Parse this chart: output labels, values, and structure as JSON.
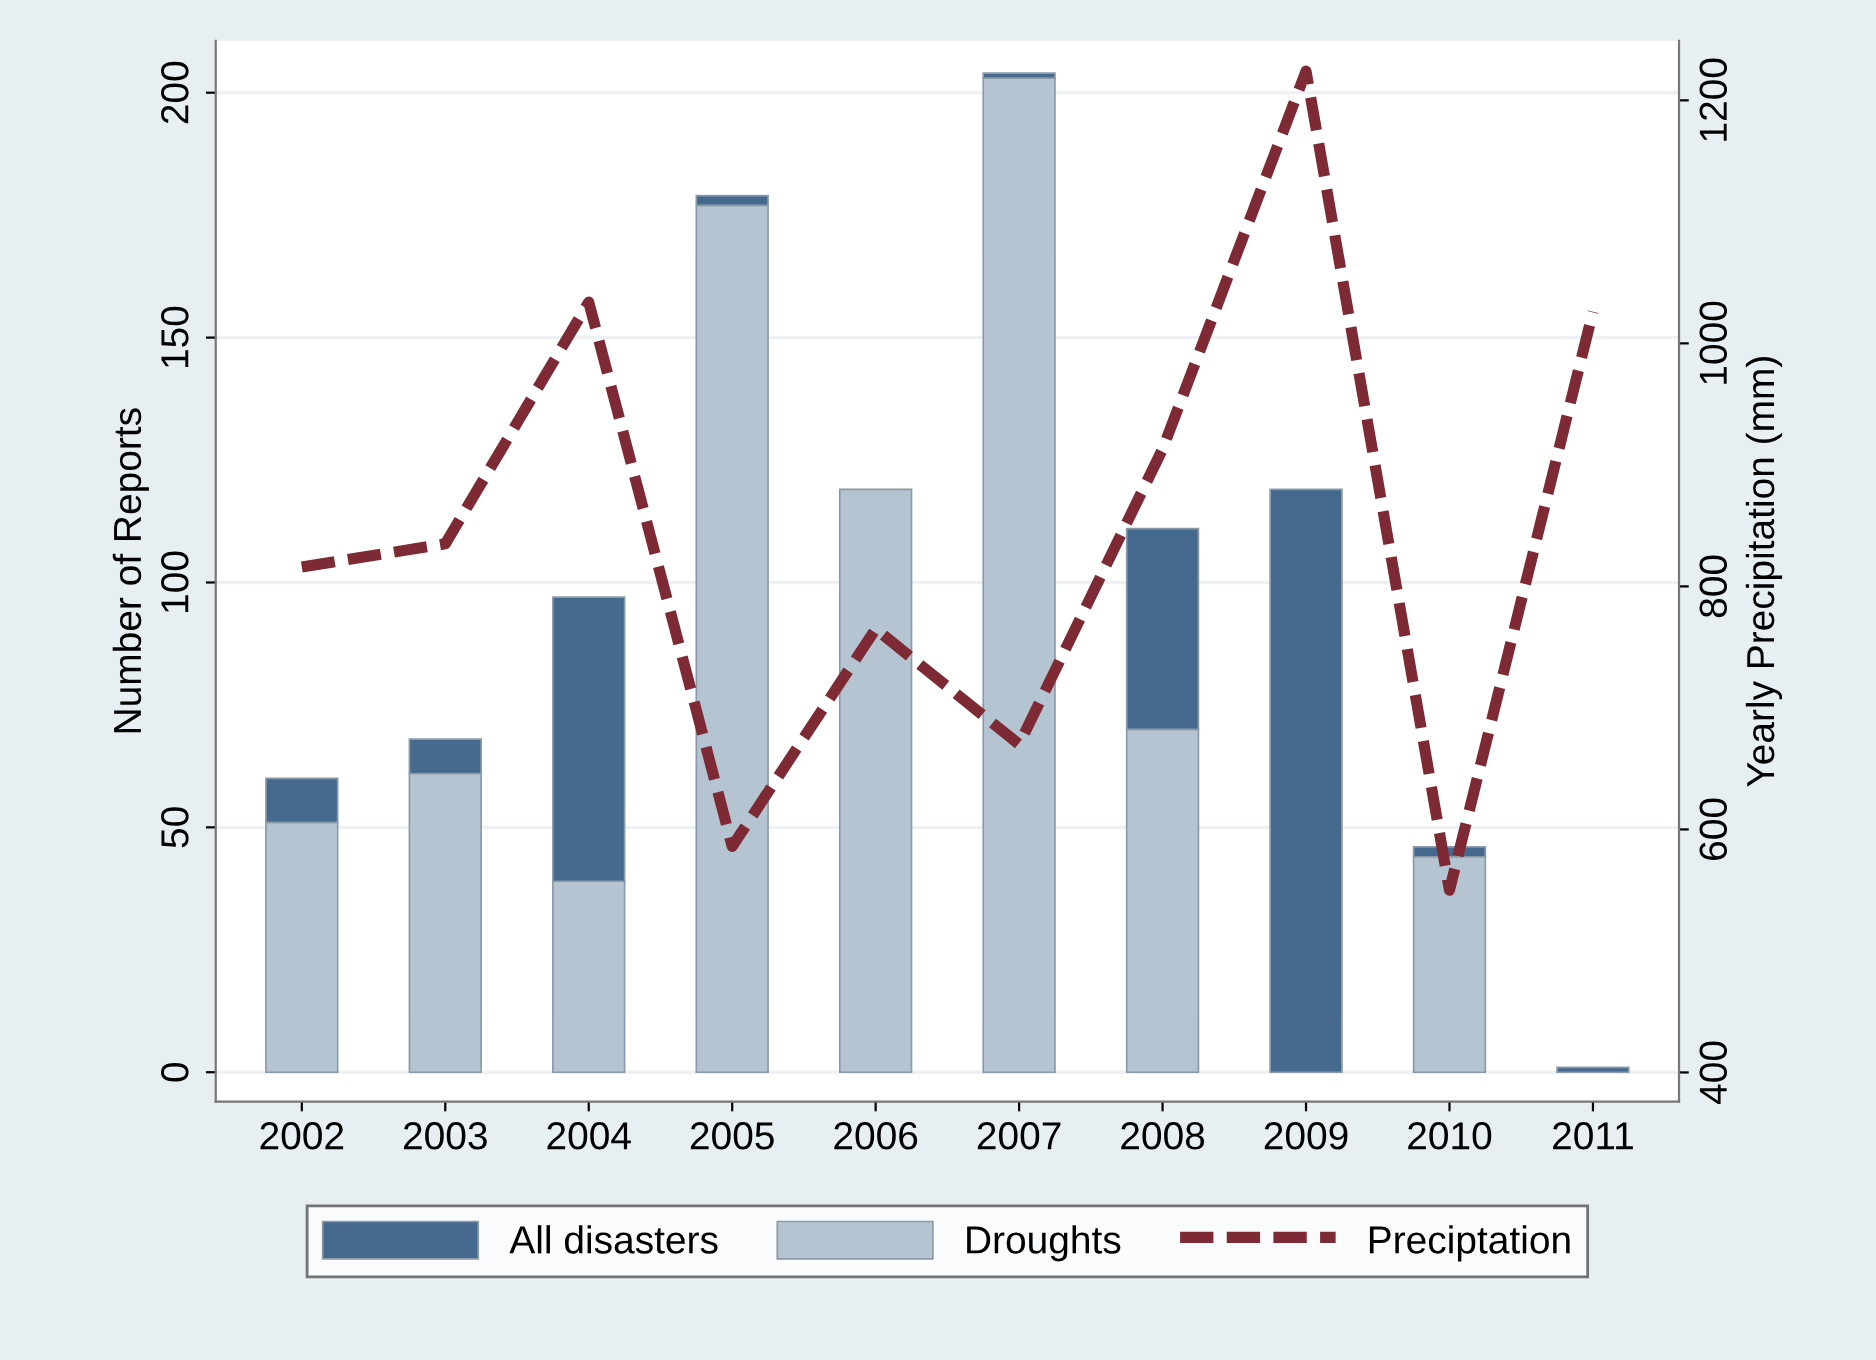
{
  "chart_data": {
    "type": "bar",
    "stacked": true,
    "categories": [
      "2002",
      "2003",
      "2004",
      "2005",
      "2006",
      "2007",
      "2008",
      "2009",
      "2010",
      "2011"
    ],
    "series": [
      {
        "name": "Droughts",
        "color": "#b5c4d1",
        "values": [
          51,
          61,
          39,
          177,
          119,
          203,
          70,
          0,
          44,
          0
        ]
      },
      {
        "name": "All disasters",
        "color": "#466a8e",
        "values": [
          9,
          7,
          58,
          2,
          0,
          1,
          41,
          119,
          2,
          1
        ]
      },
      {
        "name": "Preciptation",
        "type": "line",
        "axis": "y2",
        "color": "#7e2a35",
        "line_style": "dashed",
        "marker": "none",
        "values": [
          816,
          835,
          1034,
          586,
          765,
          670,
          913,
          1224,
          550,
          1026
        ]
      }
    ],
    "ylabel": "Number of Reports",
    "y2label": "Yearly Precipitation (mm)",
    "ylim": [
      -6,
      210.6
    ],
    "yticks": [
      0,
      50,
      100,
      150,
      200
    ],
    "y2lim": [
      376,
      1249
    ],
    "y2ticks": [
      400,
      600,
      800,
      1000,
      1200
    ],
    "grid": "y",
    "legend": "bottom"
  }
}
